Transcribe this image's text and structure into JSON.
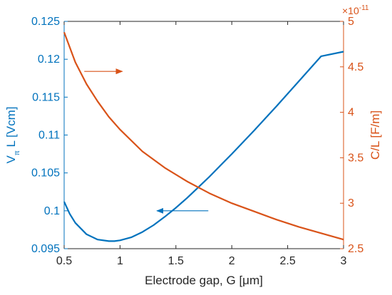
{
  "chart_data": {
    "type": "line",
    "xlabel": "Electrode gap, G  [μm]",
    "ylabel_left": {
      "main": "V",
      "sub": "π",
      "rest": "L  [Vcm]"
    },
    "ylabel_right": "C/L  [F/m]",
    "right_exponent": {
      "base": "×10",
      "power": "-11"
    },
    "xlim": [
      0.5,
      3
    ],
    "ylim_left": [
      0.095,
      0.125
    ],
    "ylim_right": [
      2.5,
      5
    ],
    "x_ticks": [
      0.5,
      1,
      1.5,
      2,
      2.5,
      3
    ],
    "x_tick_labels": [
      "0.5",
      "1",
      "1.5",
      "2",
      "2.5",
      "3"
    ],
    "y_left_ticks": [
      0.095,
      0.1,
      0.105,
      0.11,
      0.115,
      0.12,
      0.125
    ],
    "y_left_tick_labels": [
      "0.095",
      "0.1",
      "0.105",
      "0.11",
      "0.115",
      "0.12",
      "0.125"
    ],
    "y_right_ticks": [
      2.5,
      3,
      3.5,
      4,
      4.5,
      5
    ],
    "y_right_tick_labels": [
      "2.5",
      "3",
      "3.5",
      "4",
      "4.5",
      "5"
    ],
    "series": [
      {
        "axis": "left",
        "color": "#0072bd",
        "x": [
          0.5,
          0.55,
          0.6,
          0.7,
          0.8,
          0.9,
          0.95,
          1.0,
          1.1,
          1.2,
          1.3,
          1.4,
          1.5,
          1.6,
          1.7,
          1.8,
          1.9,
          2.0,
          2.2,
          2.4,
          2.6,
          2.8,
          3.0
        ],
        "y": [
          0.1012,
          0.0996,
          0.0984,
          0.0969,
          0.0962,
          0.096,
          0.096,
          0.0961,
          0.0965,
          0.0972,
          0.0981,
          0.0992,
          0.1004,
          0.1017,
          0.1031,
          0.1045,
          0.106,
          0.1075,
          0.1106,
          0.1138,
          0.1171,
          0.1204,
          0.121
        ]
      },
      {
        "axis": "right",
        "color": "#d95319",
        "x": [
          0.5,
          0.6,
          0.7,
          0.8,
          0.9,
          1.0,
          1.2,
          1.4,
          1.6,
          1.8,
          2.0,
          2.2,
          2.4,
          2.6,
          2.8,
          3.0
        ],
        "y": [
          4.88,
          4.55,
          4.31,
          4.12,
          3.95,
          3.81,
          3.57,
          3.39,
          3.24,
          3.11,
          3.0,
          2.91,
          2.82,
          2.74,
          2.67,
          2.6
        ]
      }
    ],
    "arrows": [
      {
        "color": "#0072bd",
        "from": [
          1.79,
          0.1
        ],
        "to": [
          1.33,
          0.1
        ]
      },
      {
        "color": "#d95319",
        "from": [
          0.68,
          4.45
        ],
        "to": [
          1.02,
          4.45
        ]
      }
    ],
    "grid": false,
    "legend": "none"
  }
}
